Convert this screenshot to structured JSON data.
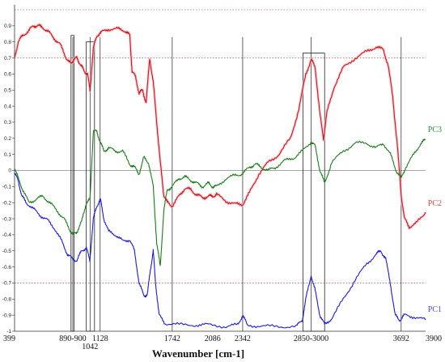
{
  "chart_data": {
    "type": "line",
    "xlabel": "Wavenumber [cm-1]",
    "x_ticks": [
      {
        "x": 399,
        "label": "399",
        "color": "#111111",
        "row": 0
      },
      {
        "x": 895,
        "label": "890-900",
        "color": "#111111",
        "row": 0
      },
      {
        "x": 1042,
        "label": "1042",
        "color": "#111111",
        "row": 1
      },
      {
        "x": 1128,
        "label": "1128",
        "color": "#2a3fb8",
        "row": 0
      },
      {
        "x": 1742,
        "label": "1742",
        "color": "#2a9a6a",
        "row": 0
      },
      {
        "x": 2086,
        "label": "2086",
        "color": "#111111",
        "row": 0
      },
      {
        "x": 2342,
        "label": "2342",
        "color": "#2a9a6a",
        "row": 0
      },
      {
        "x": 2925,
        "label": "2850-3000",
        "color": "#111111",
        "row": 0
      },
      {
        "x": 3692,
        "label": "3692",
        "color": "#111111",
        "row": 0
      },
      {
        "x": 3900,
        "label": "3900",
        "color": "#111111",
        "row": 0
      }
    ],
    "xlim": [
      399,
      3900
    ],
    "ylim": [
      -1,
      1
    ],
    "y_ticks": [
      {
        "v": 0.9,
        "label": "0.9"
      },
      {
        "v": 0.8,
        "label": "0.8"
      },
      {
        "v": 0.7,
        "label": "0.7"
      },
      {
        "v": 0.6,
        "label": "0.6"
      },
      {
        "v": 0.5,
        "label": "0.5"
      },
      {
        "v": 0.4,
        "label": "0.4"
      },
      {
        "v": 0.3,
        "label": "0.3"
      },
      {
        "v": 0.2,
        "label": "0.2"
      },
      {
        "v": 0.1,
        "label": "0.1"
      },
      {
        "v": 0,
        "label": "0"
      },
      {
        "v": -0.1,
        "label": "-0.1"
      },
      {
        "v": -0.2,
        "label": "-0.2"
      },
      {
        "v": -0.3,
        "label": "-0.3"
      },
      {
        "v": -0.4,
        "label": "-0.4"
      },
      {
        "v": -0.5,
        "label": "-0.5"
      },
      {
        "v": -0.6,
        "label": "-0.6"
      },
      {
        "v": -0.7,
        "label": "-0.7"
      },
      {
        "v": -0.8,
        "label": "-0.8"
      },
      {
        "v": -0.9,
        "label": "-0.9"
      },
      {
        "v": -1,
        "label": "-1"
      }
    ],
    "reference_lines": [
      {
        "y": 1.0,
        "style": "dotted",
        "color": "#c86464"
      },
      {
        "y": 0.7,
        "style": "dotted",
        "color": "#c86464"
      },
      {
        "y": 0,
        "style": "solid",
        "color": "#888888"
      },
      {
        "y": -0.7,
        "style": "dotted",
        "color": "#c86464"
      }
    ],
    "marker_lines": [
      895,
      1042,
      1128,
      1742,
      2342,
      2925,
      3692
    ],
    "boxes": [
      {
        "x0": 880,
        "x1": 905,
        "y0": -1,
        "y1": 0.84
      },
      {
        "x0": 1010,
        "x1": 1080,
        "y0": -1,
        "y1": 0.8
      },
      {
        "x0": 2855,
        "x1": 3040,
        "y0": -1,
        "y1": 0.73
      }
    ],
    "series": [
      {
        "name": "PC1",
        "color": "#1a1ad6",
        "label_color": "#4a4ae0",
        "points": [
          [
            399,
            -0.02
          ],
          [
            430,
            -0.06
          ],
          [
            460,
            -0.16
          ],
          [
            500,
            -0.2
          ],
          [
            560,
            -0.24
          ],
          [
            620,
            -0.28
          ],
          [
            680,
            -0.31
          ],
          [
            740,
            -0.36
          ],
          [
            800,
            -0.44
          ],
          [
            850,
            -0.52
          ],
          [
            890,
            -0.55
          ],
          [
            930,
            -0.56
          ],
          [
            970,
            -0.5
          ],
          [
            1010,
            -0.48
          ],
          [
            1040,
            -0.56
          ],
          [
            1070,
            -0.3
          ],
          [
            1100,
            -0.22
          ],
          [
            1130,
            -0.18
          ],
          [
            1160,
            -0.3
          ],
          [
            1200,
            -0.38
          ],
          [
            1260,
            -0.4
          ],
          [
            1320,
            -0.44
          ],
          [
            1380,
            -0.43
          ],
          [
            1420,
            -0.5
          ],
          [
            1460,
            -0.7
          ],
          [
            1500,
            -0.78
          ],
          [
            1530,
            -0.77
          ],
          [
            1560,
            -0.6
          ],
          [
            1580,
            -0.5
          ],
          [
            1600,
            -0.7
          ],
          [
            1630,
            -0.9
          ],
          [
            1680,
            -0.95
          ],
          [
            1800,
            -0.96
          ],
          [
            1950,
            -0.96
          ],
          [
            2050,
            -0.96
          ],
          [
            2200,
            -0.97
          ],
          [
            2300,
            -0.96
          ],
          [
            2342,
            -0.9
          ],
          [
            2380,
            -0.96
          ],
          [
            2500,
            -0.97
          ],
          [
            2650,
            -0.97
          ],
          [
            2800,
            -0.97
          ],
          [
            2850,
            -0.93
          ],
          [
            2880,
            -0.8
          ],
          [
            2925,
            -0.65
          ],
          [
            2960,
            -0.75
          ],
          [
            3000,
            -0.9
          ],
          [
            3040,
            -0.96
          ],
          [
            3100,
            -0.92
          ],
          [
            3200,
            -0.8
          ],
          [
            3300,
            -0.68
          ],
          [
            3400,
            -0.58
          ],
          [
            3480,
            -0.52
          ],
          [
            3520,
            -0.5
          ],
          [
            3560,
            -0.55
          ],
          [
            3600,
            -0.7
          ],
          [
            3640,
            -0.9
          ],
          [
            3680,
            -0.93
          ],
          [
            3720,
            -0.9
          ],
          [
            3800,
            -0.91
          ],
          [
            3900,
            -0.93
          ]
        ]
      },
      {
        "name": "PC2",
        "color": "#c81a1a",
        "label_color": "#d24a4a",
        "points": [
          [
            399,
            0.7
          ],
          [
            430,
            0.8
          ],
          [
            470,
            0.84
          ],
          [
            520,
            0.87
          ],
          [
            560,
            0.9
          ],
          [
            600,
            0.9
          ],
          [
            640,
            0.89
          ],
          [
            690,
            0.86
          ],
          [
            740,
            0.82
          ],
          [
            790,
            0.78
          ],
          [
            840,
            0.7
          ],
          [
            880,
            0.66
          ],
          [
            900,
            0.69
          ],
          [
            930,
            0.7
          ],
          [
            960,
            0.66
          ],
          [
            990,
            0.62
          ],
          [
            1020,
            0.6
          ],
          [
            1042,
            0.5
          ],
          [
            1070,
            0.76
          ],
          [
            1100,
            0.84
          ],
          [
            1140,
            0.86
          ],
          [
            1200,
            0.88
          ],
          [
            1280,
            0.88
          ],
          [
            1340,
            0.87
          ],
          [
            1380,
            0.84
          ],
          [
            1400,
            0.62
          ],
          [
            1430,
            0.58
          ],
          [
            1460,
            0.48
          ],
          [
            1490,
            0.5
          ],
          [
            1520,
            0.42
          ],
          [
            1550,
            0.7
          ],
          [
            1580,
            0.55
          ],
          [
            1610,
            0.3
          ],
          [
            1640,
            0.05
          ],
          [
            1670,
            -0.15
          ],
          [
            1700,
            -0.2
          ],
          [
            1742,
            -0.22
          ],
          [
            1800,
            -0.16
          ],
          [
            1850,
            -0.11
          ],
          [
            1900,
            -0.12
          ],
          [
            1950,
            -0.15
          ],
          [
            2000,
            -0.17
          ],
          [
            2050,
            -0.16
          ],
          [
            2086,
            -0.16
          ],
          [
            2120,
            -0.15
          ],
          [
            2200,
            -0.19
          ],
          [
            2280,
            -0.21
          ],
          [
            2342,
            -0.21
          ],
          [
            2400,
            -0.14
          ],
          [
            2480,
            -0.02
          ],
          [
            2560,
            0.05
          ],
          [
            2650,
            0.1
          ],
          [
            2750,
            0.2
          ],
          [
            2820,
            0.38
          ],
          [
            2880,
            0.6
          ],
          [
            2925,
            0.69
          ],
          [
            2960,
            0.64
          ],
          [
            3000,
            0.35
          ],
          [
            3030,
            0.2
          ],
          [
            3060,
            0.36
          ],
          [
            3120,
            0.52
          ],
          [
            3200,
            0.64
          ],
          [
            3300,
            0.7
          ],
          [
            3400,
            0.74
          ],
          [
            3480,
            0.77
          ],
          [
            3540,
            0.75
          ],
          [
            3580,
            0.66
          ],
          [
            3620,
            0.46
          ],
          [
            3660,
            0.15
          ],
          [
            3692,
            -0.15
          ],
          [
            3720,
            -0.3
          ],
          [
            3760,
            -0.35
          ],
          [
            3820,
            -0.33
          ],
          [
            3900,
            -0.26
          ]
        ]
      },
      {
        "name": "PC3",
        "color": "#1a7a1a",
        "label_color": "#2a8a3a",
        "points": [
          [
            399,
            0.02
          ],
          [
            430,
            -0.05
          ],
          [
            470,
            -0.12
          ],
          [
            520,
            -0.2
          ],
          [
            580,
            -0.18
          ],
          [
            640,
            -0.16
          ],
          [
            700,
            -0.2
          ],
          [
            760,
            -0.25
          ],
          [
            820,
            -0.3
          ],
          [
            870,
            -0.37
          ],
          [
            900,
            -0.4
          ],
          [
            930,
            -0.38
          ],
          [
            970,
            -0.32
          ],
          [
            1010,
            -0.2
          ],
          [
            1042,
            -0.18
          ],
          [
            1070,
            0.25
          ],
          [
            1100,
            0.24
          ],
          [
            1128,
            0.18
          ],
          [
            1160,
            0.12
          ],
          [
            1200,
            0.14
          ],
          [
            1260,
            0.12
          ],
          [
            1320,
            0.12
          ],
          [
            1380,
            0.04
          ],
          [
            1420,
            0.02
          ],
          [
            1460,
            -0.02
          ],
          [
            1500,
            0.08
          ],
          [
            1540,
            0.05
          ],
          [
            1580,
            -0.1
          ],
          [
            1610,
            -0.45
          ],
          [
            1640,
            -0.6
          ],
          [
            1670,
            -0.25
          ],
          [
            1700,
            -0.12
          ],
          [
            1742,
            -0.1
          ],
          [
            1800,
            -0.05
          ],
          [
            1850,
            -0.04
          ],
          [
            1900,
            -0.06
          ],
          [
            1950,
            -0.08
          ],
          [
            2000,
            -0.1
          ],
          [
            2050,
            -0.08
          ],
          [
            2086,
            -0.1
          ],
          [
            2120,
            -0.1
          ],
          [
            2200,
            -0.05
          ],
          [
            2280,
            -0.03
          ],
          [
            2342,
            -0.02
          ],
          [
            2400,
            0.02
          ],
          [
            2450,
            0.04
          ],
          [
            2500,
            0.02
          ],
          [
            2560,
            0.0
          ],
          [
            2620,
            0.02
          ],
          [
            2700,
            0.06
          ],
          [
            2780,
            0.08
          ],
          [
            2850,
            0.12
          ],
          [
            2925,
            0.18
          ],
          [
            2960,
            0.15
          ],
          [
            3000,
            0.0
          ],
          [
            3040,
            -0.08
          ],
          [
            3100,
            0.05
          ],
          [
            3200,
            0.12
          ],
          [
            3300,
            0.17
          ],
          [
            3400,
            0.17
          ],
          [
            3480,
            0.14
          ],
          [
            3540,
            0.17
          ],
          [
            3600,
            0.1
          ],
          [
            3650,
            0.0
          ],
          [
            3692,
            -0.05
          ],
          [
            3730,
            0.02
          ],
          [
            3800,
            0.1
          ],
          [
            3860,
            0.17
          ],
          [
            3900,
            0.19
          ]
        ]
      }
    ]
  }
}
